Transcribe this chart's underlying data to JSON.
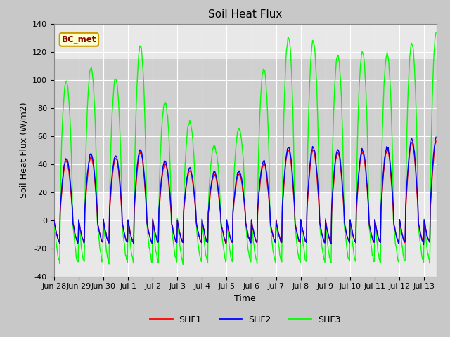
{
  "title": "Soil Heat Flux",
  "xlabel": "Time",
  "ylabel": "Soil Heat Flux (W/m2)",
  "ylim": [
    -40,
    140
  ],
  "yticks": [
    -40,
    -20,
    0,
    20,
    40,
    60,
    80,
    100,
    120,
    140
  ],
  "legend_label": "BC_met",
  "series_labels": [
    "SHF1",
    "SHF2",
    "SHF3"
  ],
  "series_colors": [
    "#ff0000",
    "#0000ff",
    "#00ff00"
  ],
  "title_fontsize": 11,
  "axis_label_fontsize": 9,
  "tick_fontsize": 8,
  "fig_bg": "#c8c8c8",
  "plot_bg": "#e8e8e8",
  "band_lo": 20,
  "band_hi": 115,
  "band_color": "#d0d0d0",
  "tick_labels": [
    "Jun 28",
    "Jun 29",
    "Jun 30",
    "Jul 1",
    "Jul 2",
    "Jul 3",
    "Jul 4",
    "Jul 5",
    "Jul 6",
    "Jul 7",
    "Jul 8",
    "Jul 9",
    "Jul 10",
    "Jul 11",
    "Jul 12",
    "Jul 13"
  ],
  "shf3_day_amps": [
    99,
    108,
    101,
    124,
    84,
    70,
    52,
    65,
    108,
    130,
    128,
    117,
    120,
    118,
    126,
    135
  ],
  "shf1_day_amps": [
    42,
    45,
    44,
    48,
    40,
    35,
    32,
    33,
    40,
    50,
    50,
    48,
    48,
    50,
    55,
    57
  ],
  "shf2_day_amps": [
    44,
    47,
    46,
    50,
    42,
    37,
    34,
    35,
    42,
    52,
    52,
    50,
    50,
    52,
    57,
    59
  ],
  "shf3_night_amp": -30,
  "shf12_night_amp": -16
}
